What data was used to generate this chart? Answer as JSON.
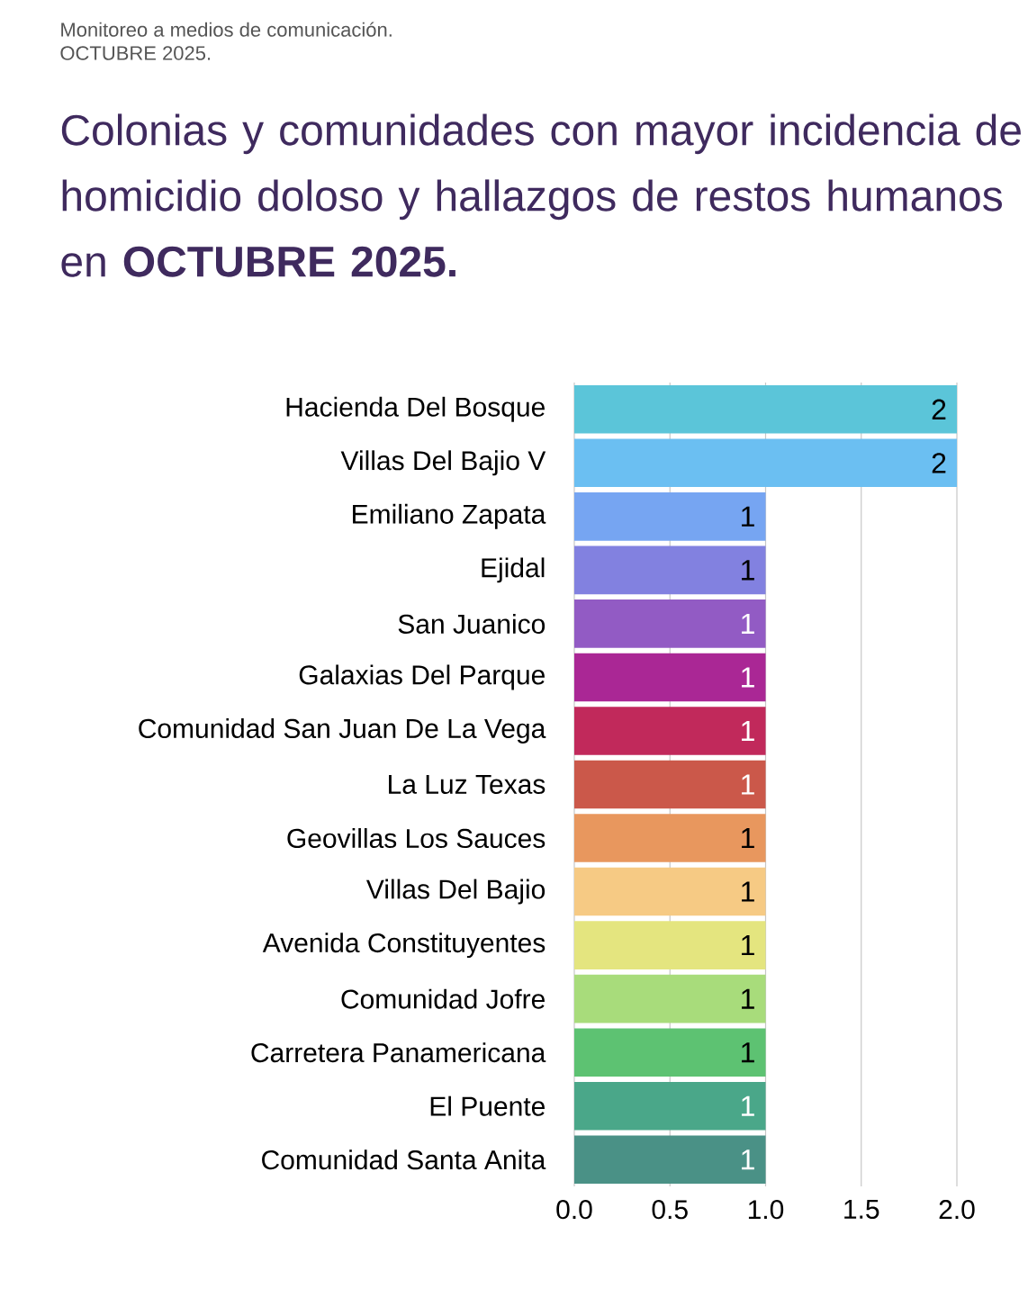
{
  "chart_data": {
    "type": "bar",
    "orientation": "horizontal",
    "title": "Colonias y comunidades con mayor incidencia de homicidio doloso y hallazgos de restos humanos en **OCTUBRE 2025.**",
    "subtitle": "Monitoreo a medios de comunicación.",
    "annotations": [
      "OCTUBRE 2025."
    ],
    "categories": [
      "Hacienda Del Bosque",
      "Villas Del Bajio V",
      "Emiliano Zapata",
      "Ejidal",
      "San Juanico",
      "Galaxias Del Parque",
      "Comunidad San Juan De La Vega",
      "La Luz Texas",
      "Geovillas Los Sauces",
      "Villas Del Bajio",
      "Avenida Constituyentes",
      "Comunidad Jofre",
      "Carretera Panamericana",
      "El Puente",
      "Comunidad Santa Anita"
    ],
    "values": [
      2,
      2,
      1,
      1,
      1,
      1,
      1,
      1,
      1,
      1,
      1,
      1,
      1,
      1,
      1
    ],
    "colors": [
      "#5bc5d9",
      "#6bbff2",
      "#76a5f2",
      "#8281e0",
      "#925bc4",
      "#aa2795",
      "#c1295b",
      "#cb584a",
      "#e8975e",
      "#f6ca84",
      "#e4e57f",
      "#a8dc7b",
      "#5dc272",
      "#4aa789",
      "#4a9186"
    ],
    "xlim": [
      0,
      2
    ],
    "xticks": [
      {
        "value": 0,
        "label": "0.0"
      },
      {
        "value": 0.5,
        "label": "0.5"
      },
      {
        "value": 1,
        "label": "1.0"
      },
      {
        "value": 1.5,
        "label": "1.5"
      },
      {
        "value": 2,
        "label": "2.0"
      }
    ],
    "grid": "x",
    "data_labels": true
  }
}
